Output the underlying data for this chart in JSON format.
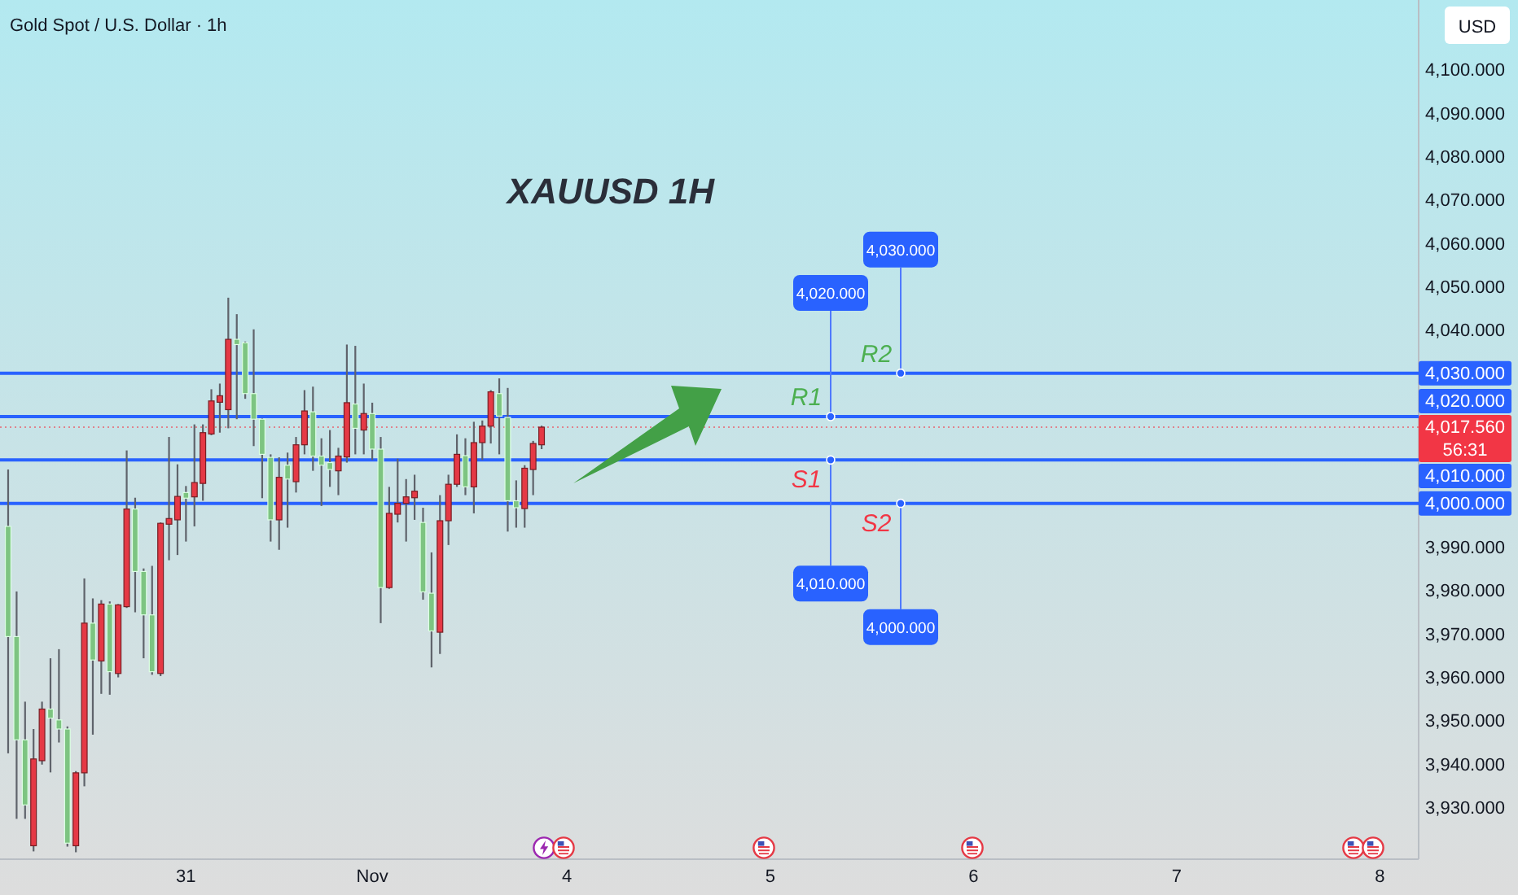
{
  "chart_data": {
    "type": "candlestick",
    "title": "XAUUSD 1H",
    "subtitle": "Gold Spot / U.S. Dollar · 1h",
    "ylabel": "USD",
    "categories": [
      null,
      null,
      null,
      null,
      null,
      null,
      null,
      null,
      null,
      null,
      null,
      null,
      null,
      null,
      null,
      null,
      null,
      null,
      null,
      null,
      null,
      "31",
      null,
      null,
      null,
      null,
      null,
      null,
      null,
      null,
      null,
      null,
      null,
      null,
      null,
      null,
      null,
      null,
      null,
      null,
      null,
      null,
      null,
      "Nov",
      null,
      null,
      null,
      null,
      null,
      null,
      null,
      null,
      null,
      null,
      null,
      null,
      null,
      null,
      null,
      null,
      null,
      null,
      null,
      null,
      null,
      null,
      "4",
      null,
      null,
      null,
      null,
      null,
      null,
      null,
      null,
      null,
      null,
      null,
      null,
      null,
      null,
      null,
      null,
      null,
      null,
      null,
      null,
      null,
      null,
      null,
      "5",
      null,
      null,
      null,
      null,
      null,
      null,
      null,
      null,
      null,
      null,
      null,
      null,
      null,
      null,
      null,
      null,
      null,
      null,
      null,
      null,
      null,
      null,
      null,
      "6",
      null,
      null,
      null,
      null,
      null,
      null,
      null,
      null,
      null,
      null,
      null,
      null,
      null,
      null,
      null,
      null,
      null,
      null,
      null,
      null,
      null,
      null,
      null,
      "7",
      null,
      null,
      null,
      null,
      null,
      null,
      null,
      null,
      null,
      null,
      null,
      null,
      null,
      null,
      null,
      null,
      null,
      null,
      null,
      null,
      null,
      null,
      null,
      "8",
      null,
      null,
      null,
      null
    ],
    "ohlc": [
      [
        3994.7,
        4007.8,
        3942.4,
        3969.3
      ],
      [
        3969.3,
        3979.7,
        3927.3,
        3945.5
      ],
      [
        3945.5,
        3954.3,
        3927.3,
        3930.5
      ],
      [
        3921.1,
        3948.0,
        3919.8,
        3941.1
      ],
      [
        3940.7,
        3954.3,
        3939.8,
        3952.6
      ],
      [
        3952.6,
        3964.3,
        3938.0,
        3950.5
      ],
      [
        3950.1,
        3966.4,
        3944.9,
        3948.0
      ],
      [
        3948.0,
        3948.6,
        3920.9,
        3921.7
      ],
      [
        3921.1,
        3938.3,
        3919.6,
        3937.9
      ],
      [
        3937.9,
        3982.7,
        3934.8,
        3972.4
      ],
      [
        3972.4,
        3978.1,
        3946.7,
        3963.9
      ],
      [
        3963.7,
        3977.7,
        3956.1,
        3976.8
      ],
      [
        3976.8,
        3977.4,
        3955.9,
        3961.2
      ],
      [
        3960.8,
        3976.8,
        3959.9,
        3976.6
      ],
      [
        3976.2,
        4012.2,
        3975.9,
        3998.7
      ],
      [
        3998.7,
        4001.3,
        3974.9,
        3984.3
      ],
      [
        3984.3,
        3985.0,
        3964.3,
        3974.3
      ],
      [
        3974.3,
        3985.6,
        3960.5,
        3961.2
      ],
      [
        3960.8,
        3995.6,
        3960.2,
        3995.4
      ],
      [
        3995.2,
        4015.3,
        3986.9,
        3996.5
      ],
      [
        3996.2,
        4009.0,
        3988.1,
        4001.6
      ],
      [
        4002.5,
        4004.0,
        3991.2,
        4001.2
      ],
      [
        4001.5,
        4018.2,
        3994.7,
        4004.8
      ],
      [
        4004.6,
        4018.2,
        4000.6,
        4016.3
      ],
      [
        4016.0,
        4026.3,
        4015.7,
        4023.6
      ],
      [
        4023.3,
        4027.6,
        4016.3,
        4024.8
      ],
      [
        4021.6,
        4047.4,
        4017.3,
        4037.8
      ],
      [
        4037.8,
        4043.6,
        4019.4,
        4036.6
      ],
      [
        4037.0,
        4037.3,
        4024.1,
        4025.3
      ],
      [
        4025.3,
        4040.1,
        4013.2,
        4019.4
      ],
      [
        4019.4,
        4019.6,
        4001.2,
        4011.3
      ],
      [
        4010.6,
        4011.3,
        3991.2,
        3996.2
      ],
      [
        3996.2,
        4010.6,
        3989.3,
        4006.0
      ],
      [
        4008.8,
        4011.7,
        3994.4,
        4005.6
      ],
      [
        4005.0,
        4015.3,
        4002.5,
        4013.5
      ],
      [
        4013.5,
        4026.1,
        4011.3,
        4021.3
      ],
      [
        4021.1,
        4026.9,
        4007.5,
        4010.9
      ],
      [
        4010.9,
        4015.0,
        3999.4,
        4008.8
      ],
      [
        4009.4,
        4016.9,
        4003.8,
        4007.8
      ],
      [
        4007.5,
        4012.8,
        4001.9,
        4010.9
      ],
      [
        4010.7,
        4036.6,
        4009.4,
        4023.2
      ],
      [
        4022.9,
        4036.3,
        4011.3,
        4017.3
      ],
      [
        4016.9,
        4027.6,
        4011.3,
        4020.7
      ],
      [
        4020.7,
        4023.2,
        4010.0,
        4012.5
      ],
      [
        4012.5,
        4015.3,
        3972.4,
        3980.6
      ],
      [
        3980.6,
        4003.8,
        3980.3,
        3997.7
      ],
      [
        3997.5,
        4010.3,
        3995.6,
        4000.0
      ],
      [
        4000.0,
        4005.6,
        3991.2,
        4001.5
      ],
      [
        4001.3,
        4006.6,
        3996.2,
        4002.8
      ],
      [
        3995.6,
        3999.0,
        3977.8,
        3979.6
      ],
      [
        3979.3,
        3988.7,
        3962.2,
        3970.6
      ],
      [
        3970.3,
        4001.9,
        3965.3,
        3996.0
      ],
      [
        3996.0,
        4006.6,
        3990.4,
        4004.4
      ],
      [
        4004.4,
        4015.9,
        4003.8,
        4011.3
      ],
      [
        4011.0,
        4015.0,
        4001.9,
        4003.8
      ],
      [
        4003.8,
        4018.8,
        3997.7,
        4014.0
      ],
      [
        4014.0,
        4019.1,
        4010.0,
        4017.8
      ],
      [
        4017.8,
        4026.1,
        4013.8,
        4025.7
      ],
      [
        4025.3,
        4028.8,
        4011.3,
        4020.1
      ],
      [
        4019.8,
        4026.6,
        3993.5,
        4000.6
      ],
      [
        4000.6,
        4005.3,
        3994.4,
        3999.0
      ],
      [
        3998.8,
        4008.8,
        3994.4,
        4008.1
      ],
      [
        4007.8,
        4014.4,
        4001.9,
        4013.8
      ],
      [
        4013.5,
        4017.9,
        4012.5,
        4017.56
      ],
      null,
      null,
      null,
      null,
      null,
      null,
      null,
      null,
      null,
      null,
      null,
      null,
      null,
      null,
      null,
      null,
      null,
      null,
      null,
      null,
      null,
      null,
      null,
      null,
      null,
      null,
      null,
      null,
      null,
      null,
      null,
      null,
      null,
      null,
      null,
      null,
      null,
      null,
      null,
      null,
      null,
      null,
      null,
      null,
      null,
      null,
      null,
      null,
      null,
      null,
      null,
      null,
      null,
      null,
      null,
      null,
      null,
      null,
      null,
      null,
      null,
      null,
      null,
      null,
      null,
      null,
      null,
      null,
      null,
      null,
      null,
      null,
      null,
      null,
      null,
      null,
      null,
      null,
      null,
      null,
      null,
      null,
      null,
      null,
      null,
      null,
      null,
      null,
      null,
      null,
      null,
      null,
      null,
      null,
      null,
      null,
      null,
      null,
      null,
      null,
      null,
      null,
      null
    ],
    "colors": [
      "#7dc481",
      "#7dc481",
      "#7dc481",
      "#e53945",
      "#e53945",
      "#7dc481",
      "#7dc481",
      "#7dc481",
      "#e53945",
      "#e53945",
      "#7dc481",
      "#e53945",
      "#7dc481",
      "#e53945",
      "#e53945",
      "#7dc481",
      "#7dc481",
      "#7dc481",
      "#e53945",
      "#e53945",
      "#e53945",
      "#7dc481",
      "#e53945",
      "#e53945",
      "#e53945",
      "#e53945",
      "#e53945",
      "#7dc481",
      "#7dc481",
      "#7dc481",
      "#7dc481",
      "#7dc481",
      "#e53945",
      "#7dc481",
      "#e53945",
      "#e53945",
      "#7dc481",
      "#7dc481",
      "#7dc481",
      "#e53945",
      "#e53945",
      "#7dc481",
      "#e53945",
      "#7dc481",
      "#7dc481",
      "#e53945",
      "#e53945",
      "#e53945",
      "#e53945",
      "#7dc481",
      "#7dc481",
      "#e53945",
      "#e53945",
      "#e53945",
      "#7dc481",
      "#e53945",
      "#e53945",
      "#e53945",
      "#7dc481",
      "#7dc481",
      "#7dc481",
      "#e53945",
      "#e53945",
      "#e53945",
      null,
      null,
      null,
      null,
      null,
      null,
      null,
      null,
      null,
      null,
      null,
      null,
      null,
      null,
      null,
      null,
      null,
      null,
      null,
      null,
      null,
      null,
      null,
      null,
      null,
      null,
      null,
      null,
      null,
      null,
      null,
      null,
      null,
      null,
      null,
      null,
      null,
      null,
      null,
      null,
      null,
      null,
      null,
      null,
      null,
      null,
      null,
      null,
      null,
      null,
      null,
      null,
      null,
      null,
      null,
      null,
      null,
      null,
      null,
      null,
      null,
      null,
      null,
      null,
      null,
      null,
      null,
      null,
      null,
      null,
      null,
      null,
      null,
      null,
      null,
      null,
      null,
      null,
      null,
      null,
      null,
      null,
      null,
      null,
      null,
      null,
      null,
      null,
      null,
      null,
      null,
      null,
      null,
      null,
      null,
      null,
      null,
      null,
      null,
      null,
      null,
      null,
      null
    ],
    "ylim": [
      3918,
      4116
    ],
    "yticks": [
      {
        "value": 3930,
        "label": "3,930.000"
      },
      {
        "value": 3940,
        "label": "3,940.000"
      },
      {
        "value": 3950,
        "label": "3,950.000"
      },
      {
        "value": 3960,
        "label": "3,960.000"
      },
      {
        "value": 3970,
        "label": "3,970.000"
      },
      {
        "value": 3980,
        "label": "3,980.000"
      },
      {
        "value": 3990,
        "label": "3,990.000"
      },
      {
        "value": 4040,
        "label": "4,040.000"
      },
      {
        "value": 4050,
        "label": "4,050.000"
      },
      {
        "value": 4060,
        "label": "4,060.000"
      },
      {
        "value": 4070,
        "label": "4,070.000"
      },
      {
        "value": 4080,
        "label": "4,080.000"
      },
      {
        "value": 4090,
        "label": "4,090.000"
      },
      {
        "value": 4100,
        "label": "4,100.000"
      }
    ],
    "ref_lines": [
      {
        "axis": "y",
        "value": 4030,
        "label": "4,030.000",
        "color": "#2962ff"
      },
      {
        "axis": "y",
        "value": 4020,
        "label": "4,020.000",
        "color": "#2962ff"
      },
      {
        "axis": "y",
        "value": 4010,
        "label": "4,010.000",
        "color": "#2962ff"
      },
      {
        "axis": "y",
        "value": 4000,
        "label": "4,000.000",
        "color": "#2962ff"
      },
      {
        "axis": "y",
        "value": 4017.56,
        "label": "4,017.560\n56:31",
        "color": "#f23645",
        "line_style": "dotted"
      }
    ],
    "annotations": [
      {
        "text": "R2",
        "y": 4030
      },
      {
        "text": "R1",
        "y": 4020
      },
      {
        "text": "S1",
        "y": 4010
      },
      {
        "text": "S2",
        "y": 4000
      },
      {
        "text": "4,030.000",
        "y": 4030
      },
      {
        "text": "4,020.000",
        "y": 4020
      },
      {
        "text": "4,010.000",
        "y": 4010
      },
      {
        "text": "4,000.000",
        "y": 4000
      }
    ]
  }
}
